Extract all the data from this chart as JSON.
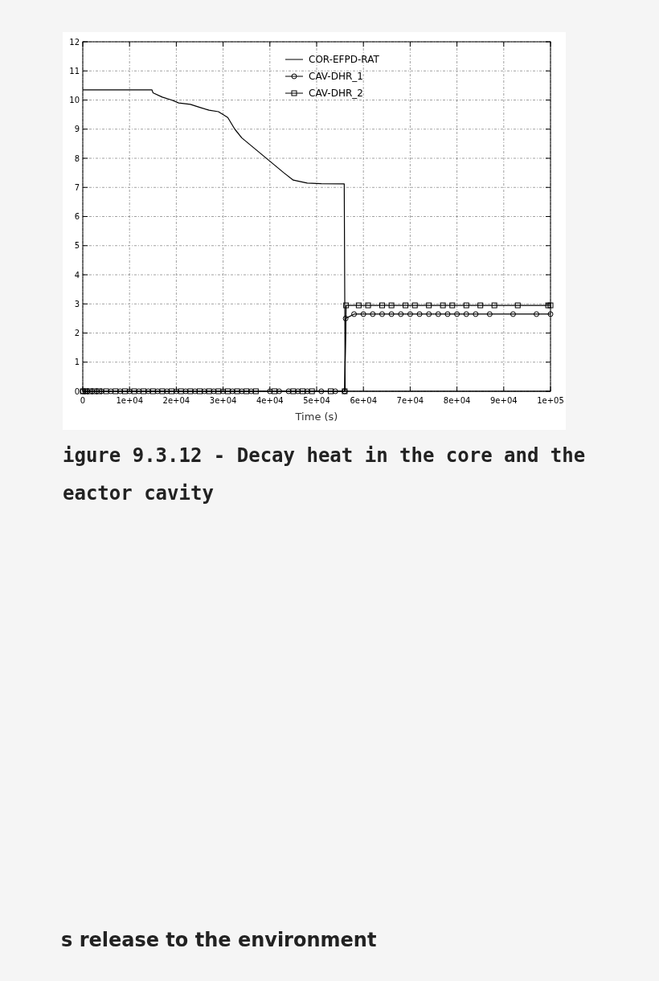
{
  "chart_data": {
    "type": "line",
    "title": "igure 9.3.12 - Decay heat in the core and the eactor cavity",
    "xlabel": "Time (s)",
    "annotations": [
      "s release to the environment"
    ],
    "xlim": [
      0,
      100000
    ],
    "ylim": [
      0,
      12
    ],
    "xticks": [
      0,
      {
        "value": 10000,
        "label": "1e+04"
      },
      {
        "value": 20000,
        "label": "2e+04"
      },
      {
        "value": 30000,
        "label": "3e+04"
      },
      {
        "value": 40000,
        "label": "4e+04"
      },
      {
        "value": 50000,
        "label": "5e+04"
      },
      {
        "value": 60000,
        "label": "6e+04"
      },
      {
        "value": 70000,
        "label": "7e+04"
      },
      {
        "value": 80000,
        "label": "8e+04"
      },
      {
        "value": 90000,
        "label": "9e+04"
      },
      {
        "value": 100000,
        "label": "1e+05"
      }
    ],
    "yticks": [
      0,
      1,
      2,
      3,
      4,
      5,
      6,
      7,
      8,
      9,
      10,
      11,
      12
    ],
    "grid": true,
    "legend": "top right",
    "series": [
      {
        "name": "COR-EFPD-RAT",
        "color": "#000000",
        "marker": "none",
        "x": [
          0,
          14800,
          15000,
          17000,
          19000,
          20500,
          23000,
          25000,
          27000,
          29000,
          31000,
          32500,
          34000,
          37000,
          40000,
          43000,
          45000,
          48000,
          51000,
          55900,
          56100,
          60000,
          70000,
          80000,
          90000,
          100000
        ],
        "values": [
          10.35,
          10.35,
          10.25,
          10.1,
          10.0,
          9.9,
          9.85,
          9.75,
          9.65,
          9.6,
          9.4,
          9.0,
          8.7,
          8.3,
          7.9,
          7.5,
          7.25,
          7.15,
          7.13,
          7.12,
          0,
          0,
          0,
          0,
          0,
          0
        ]
      },
      {
        "name": "CAV-DHR_1",
        "color": "#000000",
        "marker": "circle",
        "x": [
          0,
          500,
          1000,
          2000,
          3000,
          4000,
          6000,
          8000,
          10000,
          12000,
          14000,
          16000,
          18000,
          20000,
          22000,
          24000,
          26000,
          28000,
          30000,
          32000,
          34000,
          36000,
          40000,
          42000,
          44000,
          46000,
          48000,
          51000,
          54000,
          56000,
          56200,
          58000,
          60000,
          62000,
          64000,
          66000,
          68000,
          70000,
          72000,
          74000,
          76000,
          78000,
          80000,
          82000,
          84000,
          87000,
          92000,
          97000,
          100000
        ],
        "values": [
          0,
          0,
          0,
          0,
          0,
          0,
          0,
          0,
          0,
          0,
          0,
          0,
          0,
          0,
          0,
          0,
          0,
          0,
          0,
          0,
          0,
          0,
          0,
          0,
          0,
          0,
          0,
          0,
          0,
          0,
          2.5,
          2.65,
          2.65,
          2.65,
          2.65,
          2.65,
          2.65,
          2.65,
          2.65,
          2.65,
          2.65,
          2.65,
          2.65,
          2.65,
          2.65,
          2.65,
          2.65,
          2.65,
          2.65
        ]
      },
      {
        "name": "CAV-DHR_2",
        "color": "#000000",
        "marker": "square",
        "x": [
          0,
          700,
          1500,
          2500,
          3500,
          5000,
          7000,
          9000,
          11000,
          13000,
          15000,
          17000,
          19000,
          21000,
          23000,
          25000,
          27000,
          29000,
          31000,
          33000,
          35000,
          37000,
          41000,
          45000,
          47000,
          49000,
          53000,
          56000,
          56300,
          59000,
          61000,
          64000,
          66000,
          69000,
          71000,
          74000,
          77000,
          79000,
          82000,
          85000,
          88000,
          93000,
          99500,
          100000
        ],
        "values": [
          0,
          0,
          0,
          0,
          0,
          0,
          0,
          0,
          0,
          0,
          0,
          0,
          0,
          0,
          0,
          0,
          0,
          0,
          0,
          0,
          0,
          0,
          0,
          0,
          0,
          0,
          0,
          0,
          2.95,
          2.95,
          2.95,
          2.95,
          2.95,
          2.95,
          2.95,
          2.95,
          2.95,
          2.95,
          2.95,
          2.95,
          2.95,
          2.95,
          2.95,
          2.95
        ]
      }
    ]
  }
}
